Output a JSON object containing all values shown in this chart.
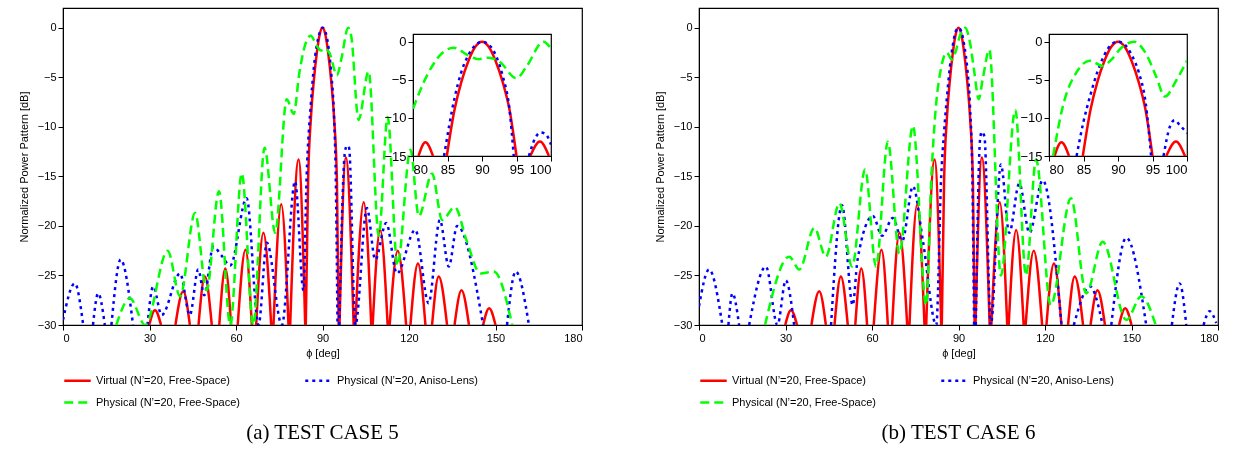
{
  "chart_data": [
    {
      "type": "line",
      "title": "(a) TEST CASE 5",
      "xlabel": "ϕ [deg]",
      "ylabel": "Normalized Power Pattern [dB]",
      "xlim": [
        0,
        180
      ],
      "ylim": [
        -30,
        2
      ],
      "xticks": [
        0,
        30,
        60,
        90,
        120,
        150,
        180
      ],
      "yticks": [
        -30,
        -25,
        -20,
        -15,
        -10,
        -5,
        0
      ],
      "legend": "bottom",
      "series": [
        {
          "name": "Virtual (N’=20, Free-Space)",
          "color": "#ff0000",
          "line_style": "solid",
          "x": [
            29.9,
            31.9,
            34,
            35,
            39,
            41.7,
            44,
            45.5,
            47,
            49.2,
            51.6,
            53,
            54.2,
            56.3,
            58.3,
            59.5,
            60.6,
            63.3,
            65.5,
            66.2,
            67,
            69.5,
            72.2,
            72.6,
            73,
            75.7,
            78.2,
            78.5,
            78.8,
            81.7,
            84,
            84.1,
            84.2,
            85,
            86,
            87,
            88,
            89,
            90,
            91,
            92,
            93,
            94,
            95,
            95.6,
            95.7,
            95.9,
            98.1,
            100.8,
            101.1,
            101.4,
            104.3,
            106.9,
            107.2,
            107.4,
            110,
            112.6,
            113,
            113.3,
            116.1,
            119,
            119.8,
            120.5,
            123.1,
            125.7,
            127,
            128,
            130.3,
            133.2,
            134.5,
            135.8,
            138.2,
            140.8,
            143,
            145.7,
            147.8,
            150
          ],
          "values": [
            -30,
            -28.5,
            -30,
            null,
            -30,
            -26.6,
            -30,
            null,
            -30,
            -25.1,
            -30,
            null,
            -30,
            -24.3,
            -30,
            null,
            -30,
            -22.4,
            -30,
            null,
            -30,
            -20.7,
            -30,
            null,
            -30,
            -17.8,
            -30,
            null,
            -30,
            -13.3,
            -30,
            null,
            -30,
            -15.5,
            -9,
            -5.3,
            -2.6,
            -0.7,
            0,
            -0.7,
            -2.6,
            -5.3,
            -9,
            -15.5,
            -30,
            null,
            -30,
            -13.1,
            -30,
            null,
            -30,
            -17.6,
            -30,
            null,
            -30,
            -20.4,
            -30,
            null,
            -30,
            -22.5,
            -30,
            null,
            -30,
            -23.8,
            -30,
            null,
            -30,
            -25.1,
            -30,
            null,
            -30,
            -26.5,
            -30,
            null,
            -30,
            -28.3,
            -30
          ]
        },
        {
          "name": "Physical (N’=20, Aniso-Lens)",
          "color": "#0000ff",
          "line_style": "dotted",
          "x": [
            0,
            4.1,
            7,
            8.7,
            10.4,
            12.2,
            14.5,
            15.6,
            16.8,
            20,
            24.3,
            26.8,
            29.3,
            31.3,
            34.2,
            40.6,
            44,
            46.9,
            49,
            52.1,
            55,
            58,
            63.7,
            67.8,
            70.7,
            75.9,
            80.5,
            83.4,
            84.5,
            86,
            87,
            88,
            89,
            90,
            91,
            92,
            93,
            94,
            94.6,
            95.2,
            95.5,
            95.8,
            97.8,
            98.5,
            99.2,
            101.4,
            105.4,
            108.3,
            112.1,
            115.8,
            122.2,
            126.8,
            130.7,
            133.8,
            136.7,
            145.7,
            150,
            154,
            157,
            161.6
          ],
          "values": [
            -29.5,
            -25.8,
            -30,
            null,
            -30,
            -26.8,
            -30,
            null,
            -30,
            -23.4,
            -30,
            null,
            -30,
            -26.1,
            -29,
            -24.8,
            -29,
            -24.4,
            -27,
            -22.1,
            -23,
            -24,
            -17.2,
            -30,
            -21.7,
            -30,
            -15.5,
            -26.5,
            -15,
            -7.5,
            -4,
            -1.8,
            -0.5,
            0,
            -0.4,
            -1.8,
            -4.5,
            -9,
            -15,
            -30,
            null,
            -30,
            -12.5,
            -11.9,
            -12.1,
            -30,
            -18.2,
            -23.4,
            -19.7,
            -24.8,
            -20.4,
            -27.8,
            -19.4,
            -24.1,
            -20,
            -30,
            null,
            -30,
            -24.6,
            -30
          ]
        },
        {
          "name": "Physical (N’=20, Free-Space)",
          "color": "#00ff00",
          "line_style": "dashed",
          "x": [
            18.5,
            23.2,
            28.5,
            36.3,
            40.6,
            45.8,
            49.8,
            54.1,
            58,
            62,
            66,
            69.9,
            73.6,
            77.6,
            80,
            82,
            84,
            85.9,
            88,
            89.5,
            91,
            92.5,
            95,
            96.5,
            98.9,
            100,
            102.5,
            106,
            109.5,
            112.6,
            116,
            120.5,
            123.4,
            128,
            131.5,
            135.9,
            140,
            144.8,
            149.4,
            155.8
          ],
          "values": [
            -30,
            -27.3,
            -30,
            -22.5,
            -27.1,
            -18.7,
            -26.5,
            -16.5,
            -30,
            -14.7,
            -30,
            -12.1,
            -20.7,
            -7.2,
            -8.7,
            -4.5,
            -1.7,
            -0.8,
            -1.8,
            -2.3,
            -2.1,
            -2.6,
            -4.8,
            -3.2,
            0,
            -0.9,
            -9.3,
            -4.4,
            -21,
            -9,
            -24,
            -12.3,
            -19,
            -14.7,
            -19.4,
            -18.1,
            -21.5,
            -24.8,
            -24.6,
            -30
          ]
        }
      ]
    },
    {
      "type": "line",
      "xlim": [
        80,
        100
      ],
      "ylim": [
        -15,
        1
      ],
      "xticks": [
        80,
        85,
        90,
        95,
        100
      ],
      "yticks": [
        -15,
        -10,
        -5,
        0
      ],
      "series": [
        {
          "color": "#ff0000",
          "line_style": "solid",
          "x": [
            80.8,
            81.8,
            82.9,
            83.9,
            84.9,
            86,
            87,
            88,
            89,
            90,
            91,
            92,
            93,
            94,
            95,
            96,
            97,
            98.4,
            99.7
          ],
          "values": [
            -15,
            -13.2,
            -15,
            null,
            -15,
            -9,
            -5.3,
            -2.6,
            -0.7,
            0,
            -0.7,
            -2.6,
            -5.3,
            -9,
            -15,
            null,
            -15,
            -13.1,
            -15
          ]
        },
        {
          "color": "#0000ff",
          "line_style": "dotted",
          "x": [
            84.5,
            86,
            87,
            88,
            89,
            90,
            91,
            92,
            93,
            94,
            94.6,
            95.7,
            96.8,
            97.8,
            98.5,
            99.2,
            100
          ],
          "values": [
            -15,
            -7.5,
            -4,
            -1.8,
            -0.5,
            0,
            -0.4,
            -1.8,
            -4.5,
            -9,
            -15,
            null,
            -15,
            -12.5,
            -11.9,
            -12.1,
            -13.5
          ]
        },
        {
          "color": "#00ff00",
          "line_style": "dashed",
          "x": [
            80,
            82,
            84,
            85.9,
            88,
            89.5,
            91,
            92.5,
            95,
            96.5,
            98.9,
            100
          ],
          "values": [
            -8.8,
            -4.5,
            -1.7,
            -0.8,
            -1.8,
            -2.3,
            -2.1,
            -2.6,
            -4.8,
            -3.2,
            0,
            -0.9
          ]
        }
      ]
    },
    {
      "type": "line",
      "title": "(b) TEST CASE 6",
      "xlabel": "ϕ [deg]",
      "ylabel": "Normalized Power Pattern [dB]",
      "xlim": [
        0,
        180
      ],
      "ylim": [
        -30,
        2
      ],
      "xticks": [
        0,
        30,
        60,
        90,
        120,
        150,
        180
      ],
      "yticks": [
        -30,
        -25,
        -20,
        -15,
        -10,
        -5,
        0
      ],
      "legend": "bottom",
      "series": [
        {
          "name": "Virtual (N’=20, Free-Space)",
          "color": "#ff0000",
          "line_style": "solid",
          "x": [
            29.9,
            31.9,
            34,
            35,
            39,
            41.7,
            44,
            45.5,
            47,
            49.2,
            51.6,
            53,
            54.2,
            56.3,
            58.3,
            59.5,
            60.6,
            63.3,
            65.5,
            66.2,
            67,
            69.5,
            72.2,
            72.6,
            73,
            75.7,
            78.2,
            78.5,
            78.8,
            81.7,
            84,
            84.1,
            84.2,
            85,
            86,
            87,
            88,
            89,
            90,
            91,
            92,
            93,
            94,
            95,
            95.6,
            95.7,
            95.9,
            98.1,
            100.8,
            101.1,
            101.4,
            104.3,
            106.9,
            107.2,
            107.4,
            110,
            112.6,
            113,
            113.3,
            116.1,
            119,
            119.8,
            120.5,
            123.1,
            125.7,
            127,
            128,
            130.3,
            133.2,
            134.5,
            135.8,
            138.2,
            140.8,
            143,
            145.7,
            147.8,
            150
          ],
          "values": [
            -30,
            -28.5,
            -30,
            null,
            -30,
            -26.6,
            -30,
            null,
            -30,
            -25.1,
            -30,
            null,
            -30,
            -24.3,
            -30,
            null,
            -30,
            -22.4,
            -30,
            null,
            -30,
            -20.7,
            -30,
            null,
            -30,
            -17.8,
            -30,
            null,
            -30,
            -13.3,
            -30,
            null,
            -30,
            -15.5,
            -9,
            -5.3,
            -2.6,
            -0.7,
            0,
            -0.7,
            -2.6,
            -5.3,
            -9,
            -15.5,
            -30,
            null,
            -30,
            -13.1,
            -30,
            null,
            -30,
            -17.6,
            -30,
            null,
            -30,
            -20.4,
            -30,
            null,
            -30,
            -22.5,
            -30,
            null,
            -30,
            -23.8,
            -30,
            null,
            -30,
            -25.1,
            -30,
            null,
            -30,
            -26.5,
            -30,
            null,
            -30,
            -28.3,
            -30
          ]
        },
        {
          "name": "Physical (N’=20, Aniso-Lens)",
          "color": "#0000ff",
          "line_style": "dotted",
          "x": [
            0,
            3.5,
            8.1,
            9,
            10.2,
            11.6,
            13.9,
            15.6,
            17.4,
            23.2,
            27.2,
            30.1,
            33,
            39,
            45.8,
            49.6,
            53.3,
            55,
            60.3,
            63.5,
            67.2,
            70.5,
            74.2,
            77.6,
            82.3,
            84,
            85,
            86,
            87,
            88,
            89,
            90,
            91,
            92,
            93,
            94,
            94.8,
            95.4,
            95.7,
            96,
            97.5,
            98.1,
            99,
            101.2,
            104.7,
            107.6,
            111.1,
            114.6,
            119.2,
            125.7,
            127.8,
            130,
            135.6,
            140,
            141.5,
            143,
            148.2,
            155.1,
            161,
            164,
            166.7,
            169,
            173,
            175,
            177.1,
            179.4
          ],
          "values": [
            -28.1,
            -24.4,
            -30,
            null,
            -30,
            -26.8,
            -30,
            null,
            -30,
            -24.1,
            -30,
            -25.5,
            -30,
            null,
            -30,
            -17.9,
            -28,
            -23.4,
            -19,
            -21,
            -19.2,
            -21.5,
            -16,
            -21.4,
            -30,
            -15,
            -10.5,
            -7,
            -4,
            -1.8,
            -0.4,
            0,
            -0.4,
            -1.8,
            -4,
            -8,
            -15,
            -30,
            null,
            -30,
            -11.2,
            -10.5,
            -11,
            -30,
            -13.8,
            -20.7,
            -15.7,
            -20.7,
            -15.4,
            -30,
            null,
            -30,
            -26.1,
            -30,
            null,
            -30,
            -21.2,
            -30,
            null,
            -30,
            -25.8,
            -30,
            null,
            -30,
            -28.6,
            -29.8
          ]
        },
        {
          "name": "Physical (N’=20, Free-Space)",
          "color": "#00ff00",
          "line_style": "dashed",
          "x": [
            22.9,
            31.3,
            34.8,
            40,
            44,
            48.7,
            53.1,
            57.6,
            61.4,
            65.5,
            69.5,
            74.2,
            78.8,
            80.6,
            82,
            84,
            85.9,
            87.8,
            89,
            90.5,
            92.3,
            94,
            95.5,
            97,
            98.5,
            100.7,
            104.7,
            109.7,
            113.4,
            116.9,
            122,
            129,
            134.3,
            140,
            148.2,
            153.4,
            158.4
          ],
          "values": [
            -30,
            -23.1,
            -24.4,
            -20.2,
            -23.1,
            -17.7,
            -24.1,
            -14.3,
            -24.1,
            -11.5,
            -22.8,
            -9.9,
            -28,
            -15,
            -8.5,
            -4,
            -2.5,
            -3.2,
            -2.4,
            -0.8,
            0,
            -1.5,
            -4.5,
            -7.2,
            -5,
            -2.2,
            -25,
            -8.3,
            -25,
            -13.3,
            -28,
            -17.2,
            -26.8,
            -21.6,
            -29.5,
            -27.1,
            -30
          ]
        }
      ]
    },
    {
      "type": "line",
      "xlim": [
        80,
        100
      ],
      "ylim": [
        -15,
        1
      ],
      "xticks": [
        80,
        85,
        90,
        95,
        100
      ],
      "yticks": [
        -15,
        -10,
        -5,
        0
      ],
      "series": [
        {
          "color": "#ff0000",
          "line_style": "solid",
          "x": [
            80.8,
            81.8,
            82.9,
            83.9,
            84.9,
            86,
            87,
            88,
            89,
            90,
            91,
            92,
            93,
            94,
            95,
            96,
            97,
            98.4,
            99.7
          ],
          "values": [
            -15,
            -13.2,
            -15,
            null,
            -15,
            -9,
            -5.3,
            -2.6,
            -0.7,
            0,
            -0.7,
            -2.6,
            -5.3,
            -9,
            -15,
            null,
            -15,
            -13.1,
            -15
          ]
        },
        {
          "color": "#0000ff",
          "line_style": "dotted",
          "x": [
            84,
            85,
            86,
            87,
            88,
            89,
            90,
            91,
            92,
            93,
            94,
            94.8,
            95.7,
            96.6,
            97.5,
            98.2,
            99,
            100
          ],
          "values": [
            -15,
            -10.5,
            -7,
            -4,
            -1.8,
            -0.4,
            0,
            -0.4,
            -1.8,
            -4,
            -8,
            -15,
            null,
            -15,
            -11.2,
            -10.3,
            -11,
            -12
          ]
        },
        {
          "color": "#00ff00",
          "line_style": "dashed",
          "x": [
            80.6,
            82,
            84,
            85.9,
            87.8,
            89,
            90.5,
            92.3,
            94,
            95.5,
            96.8,
            98.5,
            100
          ],
          "values": [
            -15,
            -8.5,
            -4,
            -2.5,
            -3.2,
            -2.4,
            -0.8,
            0,
            -1.5,
            -4.5,
            -7.2,
            -5,
            -2.5
          ]
        }
      ]
    }
  ]
}
